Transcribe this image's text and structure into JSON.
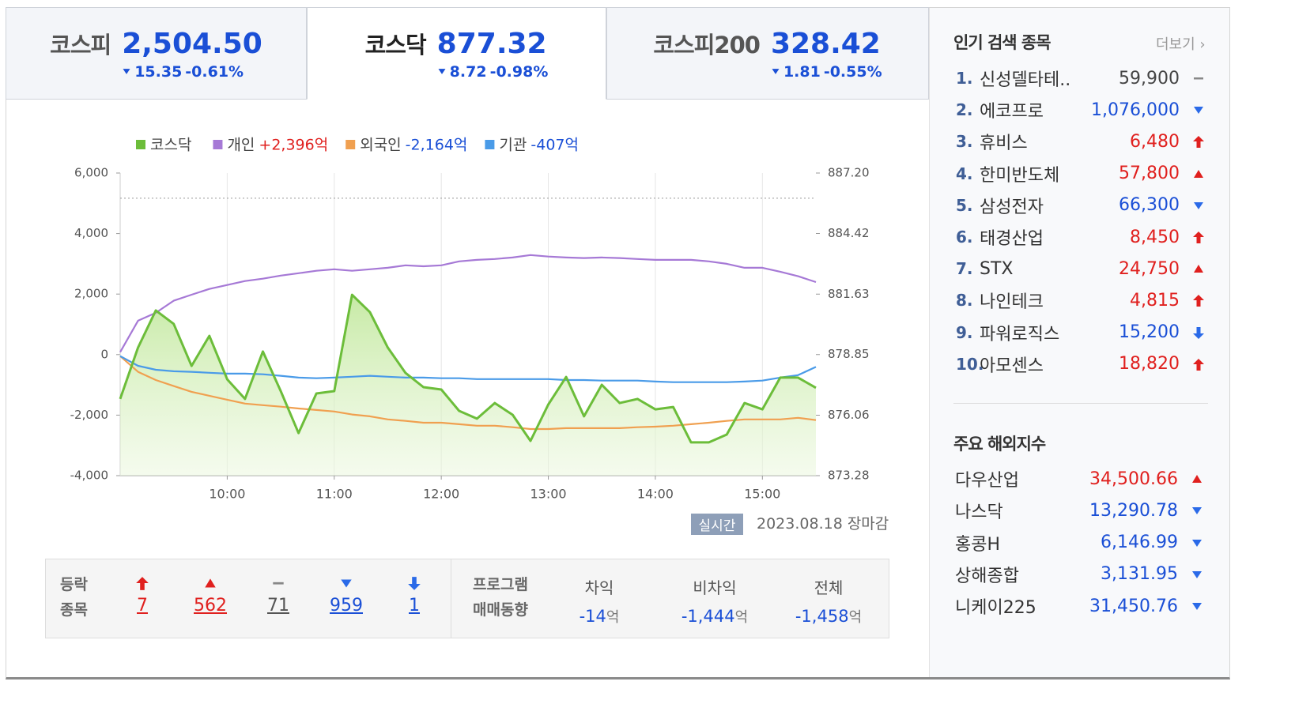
{
  "tabs": [
    {
      "name": "코스피",
      "value": "2,504.50",
      "change": "15.35",
      "rate": "-0.61%",
      "direction": "down",
      "active": false
    },
    {
      "name": "코스닥",
      "value": "877.32",
      "change": "8.72",
      "rate": "-0.98%",
      "direction": "down",
      "active": true
    },
    {
      "name": "코스피200",
      "value": "328.42",
      "change": "1.81",
      "rate": "-0.55%",
      "direction": "down",
      "active": false
    }
  ],
  "chart_data": {
    "type": "line",
    "categories": [
      null,
      null,
      null,
      null,
      null,
      null,
      "10:00",
      null,
      null,
      null,
      null,
      null,
      "11:00",
      null,
      null,
      null,
      null,
      null,
      "12:00",
      null,
      null,
      null,
      null,
      null,
      "13:00",
      null,
      null,
      null,
      null,
      null,
      "14:00",
      null,
      null,
      null,
      null,
      null,
      "15:00",
      null,
      null,
      null
    ],
    "series": [
      {
        "name": "코스닥",
        "color": "#6cbd3a",
        "axis": "y2",
        "area": true,
        "values": [
          876.81,
          879.17,
          880.88,
          880.26,
          878.33,
          879.71,
          877.71,
          876.81,
          878.99,
          877.17,
          875.24,
          877.06,
          877.17,
          881.6,
          880.8,
          879.17,
          878.0,
          877.35,
          877.24,
          876.26,
          875.9,
          876.62,
          876.08,
          874.88,
          876.55,
          877.82,
          876.01,
          877.46,
          876.62,
          876.81,
          876.33,
          876.44,
          874.81,
          874.81,
          875.17,
          876.62,
          876.33,
          877.79,
          877.79,
          877.32
        ]
      },
      {
        "name": "개인",
        "color": "#a679d6",
        "legend_value": "+2,396억",
        "legend_value_color": "#e0201e",
        "values": [
          80,
          1120,
          1380,
          1780,
          1980,
          2170,
          2300,
          2430,
          2510,
          2610,
          2690,
          2770,
          2820,
          2770,
          2820,
          2870,
          2950,
          2920,
          2950,
          3080,
          3130,
          3160,
          3210,
          3290,
          3240,
          3210,
          3190,
          3210,
          3190,
          3160,
          3130,
          3130,
          3130,
          3080,
          3000,
          2870,
          2870,
          2740,
          2590,
          2396
        ]
      },
      {
        "name": "외국인",
        "color": "#f0a050",
        "legend_value": "-2,164억",
        "legend_value_color": "#1a4fd6",
        "values": [
          -50,
          -570,
          -840,
          -1040,
          -1230,
          -1360,
          -1490,
          -1620,
          -1670,
          -1720,
          -1780,
          -1830,
          -1880,
          -1980,
          -2040,
          -2140,
          -2190,
          -2250,
          -2250,
          -2300,
          -2350,
          -2350,
          -2400,
          -2460,
          -2460,
          -2430,
          -2430,
          -2430,
          -2430,
          -2400,
          -2380,
          -2350,
          -2300,
          -2250,
          -2190,
          -2140,
          -2140,
          -2140,
          -2090,
          -2164
        ]
      },
      {
        "name": "기관",
        "color": "#4a9be8",
        "legend_value": "-407억",
        "legend_value_color": "#1a4fd6",
        "values": [
          -50,
          -370,
          -500,
          -550,
          -570,
          -600,
          -630,
          -630,
          -650,
          -700,
          -760,
          -780,
          -760,
          -730,
          -700,
          -730,
          -760,
          -760,
          -780,
          -780,
          -810,
          -810,
          -810,
          -810,
          -810,
          -840,
          -840,
          -860,
          -860,
          -860,
          -890,
          -910,
          -910,
          -910,
          -910,
          -890,
          -860,
          -760,
          -680,
          -407
        ]
      }
    ],
    "ylim": [
      -4000,
      6000
    ],
    "yticks": [
      {
        "value": -4000,
        "label": "-4,000"
      },
      {
        "value": -2000,
        "label": "-2,000"
      },
      0,
      {
        "value": 2000,
        "label": "2,000"
      },
      {
        "value": 4000,
        "label": "4,000"
      },
      {
        "value": 6000,
        "label": "6,000"
      }
    ],
    "y2lim": [
      873.28,
      887.2
    ],
    "y2ticks": [
      873.28,
      876.06,
      878.85,
      881.63,
      884.42,
      {
        "value": 887.2,
        "label": "887.20"
      }
    ],
    "reference": {
      "value": 886.04,
      "axis": "y2"
    },
    "grid": "x"
  },
  "status": {
    "badge": "실시간",
    "timestamp": "2023.08.18 장마감"
  },
  "updown": {
    "label_lines": [
      "등락",
      "종목"
    ],
    "counts": [
      {
        "direction": "upper",
        "value": "7"
      },
      {
        "direction": "up",
        "value": "562"
      },
      {
        "direction": "flat",
        "value": "71"
      },
      {
        "direction": "down",
        "value": "959"
      },
      {
        "direction": "lower",
        "value": "1"
      }
    ]
  },
  "program": {
    "label_lines": [
      "프로그램",
      "매매동향"
    ],
    "items": [
      {
        "name": "차익",
        "value": "-14",
        "unit": "억"
      },
      {
        "name": "비차익",
        "value": "-1,444",
        "unit": "억"
      },
      {
        "name": "전체",
        "value": "-1,458",
        "unit": "억"
      }
    ]
  },
  "popular": {
    "title": "인기 검색 종목",
    "more": "더보기",
    "items": [
      {
        "rank": "1.",
        "name": "신성델타테..",
        "price": "59,900",
        "direction": "flat"
      },
      {
        "rank": "2.",
        "name": "에코프로",
        "price": "1,076,000",
        "direction": "down"
      },
      {
        "rank": "3.",
        "name": "휴비스",
        "price": "6,480",
        "direction": "upper"
      },
      {
        "rank": "4.",
        "name": "한미반도체",
        "price": "57,800",
        "direction": "up"
      },
      {
        "rank": "5.",
        "name": "삼성전자",
        "price": "66,300",
        "direction": "down"
      },
      {
        "rank": "6.",
        "name": "태경산업",
        "price": "8,450",
        "direction": "upper"
      },
      {
        "rank": "7.",
        "name": "STX",
        "price": "24,750",
        "direction": "up"
      },
      {
        "rank": "8.",
        "name": "나인테크",
        "price": "4,815",
        "direction": "upper"
      },
      {
        "rank": "9.",
        "name": "파워로직스",
        "price": "15,200",
        "direction": "lower"
      },
      {
        "rank": "10.",
        "name": "아모센스",
        "price": "18,820",
        "direction": "upper"
      }
    ]
  },
  "world": {
    "title": "주요 해외지수",
    "items": [
      {
        "name": "다우산업",
        "value": "34,500.66",
        "direction": "up"
      },
      {
        "name": "나스닥",
        "value": "13,290.78",
        "direction": "down"
      },
      {
        "name": "홍콩H",
        "value": "6,146.99",
        "direction": "down"
      },
      {
        "name": "상해종합",
        "value": "3,131.95",
        "direction": "down"
      },
      {
        "name": "니케이225",
        "value": "31,450.76",
        "direction": "down"
      }
    ]
  }
}
